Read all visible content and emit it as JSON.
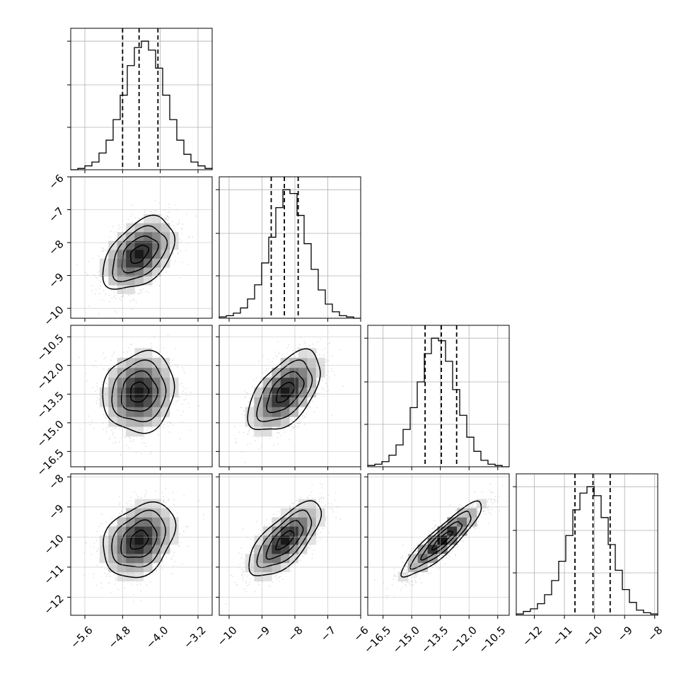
{
  "chart_data": {
    "type": "corner",
    "title": "",
    "parameters": [
      {
        "xlim": [
          -5.9,
          -2.9
        ],
        "xticks": [
          -5.6,
          -4.8,
          -4.0,
          -3.2
        ],
        "tick_labels": [
          "−5.6",
          "−4.8",
          "−4.0",
          "−3.2"
        ]
      },
      {
        "xlim": [
          -10.3,
          -6.0
        ],
        "xticks": [
          -10,
          -9,
          -8,
          -7,
          -6
        ],
        "tick_labels": [
          "−10",
          "−9",
          "−8",
          "−7",
          "−6"
        ]
      },
      {
        "xlim": [
          -17.3,
          -9.9
        ],
        "xticks": [
          -16.5,
          -15.0,
          -13.5,
          -12.0,
          -10.5
        ],
        "tick_labels": [
          "−16.5",
          "−15.0",
          "−13.5",
          "−12.0",
          "−10.5"
        ]
      },
      {
        "xlim": [
          -12.6,
          -7.9
        ],
        "xticks": [
          -12,
          -11,
          -10,
          -9,
          -8
        ],
        "tick_labels": [
          "−12",
          "−11",
          "−10",
          "−9",
          "−8"
        ]
      }
    ],
    "marginals": [
      {
        "quantiles": [
          -4.8,
          -4.45,
          -4.05
        ],
        "bin_edges": [
          -5.9,
          -5.75,
          -5.6,
          -5.45,
          -5.3,
          -5.15,
          -5.0,
          -4.85,
          -4.7,
          -4.55,
          -4.4,
          -4.25,
          -4.1,
          -3.95,
          -3.8,
          -3.65,
          -3.5,
          -3.35,
          -3.2,
          -3.05,
          -2.9
        ],
        "counts": [
          0,
          0.01,
          0.03,
          0.06,
          0.13,
          0.23,
          0.39,
          0.58,
          0.81,
          0.95,
          1.0,
          0.93,
          0.79,
          0.58,
          0.39,
          0.23,
          0.12,
          0.06,
          0.03,
          0.01
        ]
      },
      {
        "quantiles": [
          -8.72,
          -8.32,
          -7.9
        ],
        "bin_edges": [
          -10.3,
          -10.085,
          -9.87,
          -9.655,
          -9.44,
          -9.225,
          -9.01,
          -8.795,
          -8.58,
          -8.365,
          -8.15,
          -7.935,
          -7.72,
          -7.505,
          -7.29,
          -7.075,
          -6.86,
          -6.645,
          -6.43,
          -6.215,
          -6.0
        ],
        "counts": [
          0.01,
          0.02,
          0.04,
          0.08,
          0.15,
          0.26,
          0.43,
          0.63,
          0.86,
          1.0,
          0.97,
          0.8,
          0.58,
          0.38,
          0.22,
          0.11,
          0.05,
          0.02,
          0.01,
          0
        ]
      },
      {
        "quantiles": [
          -14.3,
          -13.45,
          -12.65
        ],
        "bin_edges": [
          -17.3,
          -16.93,
          -16.56,
          -16.19,
          -15.82,
          -15.45,
          -15.08,
          -14.71,
          -14.34,
          -13.97,
          -13.6,
          -13.23,
          -12.86,
          -12.49,
          -12.12,
          -11.75,
          -11.38,
          -11.01,
          -10.64,
          -10.27,
          -9.9
        ],
        "counts": [
          0.01,
          0.02,
          0.04,
          0.09,
          0.17,
          0.29,
          0.46,
          0.66,
          0.88,
          1.0,
          0.98,
          0.82,
          0.6,
          0.4,
          0.23,
          0.12,
          0.05,
          0.02,
          0.01,
          0
        ]
      },
      {
        "quantiles": [
          -10.65,
          -10.05,
          -9.48
        ],
        "bin_edges": [
          -12.6,
          -12.365,
          -12.13,
          -11.895,
          -11.66,
          -11.425,
          -11.19,
          -10.955,
          -10.72,
          -10.485,
          -10.25,
          -10.015,
          -9.78,
          -9.545,
          -9.31,
          -9.075,
          -8.84,
          -8.605,
          -8.37,
          -8.135,
          -7.9
        ],
        "counts": [
          0.01,
          0.03,
          0.05,
          0.09,
          0.16,
          0.27,
          0.42,
          0.62,
          0.82,
          0.95,
          1.0,
          0.93,
          0.76,
          0.55,
          0.35,
          0.2,
          0.1,
          0.04,
          0.02,
          0.01
        ]
      }
    ],
    "pairs": [
      {
        "row": 1,
        "col": 0,
        "x_center": -4.45,
        "y_center": -8.35,
        "x_sd": 0.38,
        "y_sd": 0.55,
        "rho": 0.45
      },
      {
        "row": 2,
        "col": 0,
        "x_center": -4.45,
        "y_center": -13.4,
        "x_sd": 0.38,
        "y_sd": 1.05,
        "rho": 0.1
      },
      {
        "row": 2,
        "col": 1,
        "x_center": -8.3,
        "y_center": -13.4,
        "x_sd": 0.55,
        "y_sd": 1.05,
        "rho": 0.55
      },
      {
        "row": 3,
        "col": 0,
        "x_center": -4.45,
        "y_center": -10.1,
        "x_sd": 0.38,
        "y_sd": 0.62,
        "rho": 0.3
      },
      {
        "row": 3,
        "col": 1,
        "x_center": -8.3,
        "y_center": -10.1,
        "x_sd": 0.55,
        "y_sd": 0.62,
        "rho": 0.7
      },
      {
        "row": 3,
        "col": 2,
        "x_center": -13.4,
        "y_center": -10.1,
        "x_sd": 1.05,
        "y_sd": 0.62,
        "rho": 0.9
      }
    ],
    "grid": true,
    "contour_levels": [
      0.5,
      1.0,
      1.5,
      2.0
    ]
  }
}
